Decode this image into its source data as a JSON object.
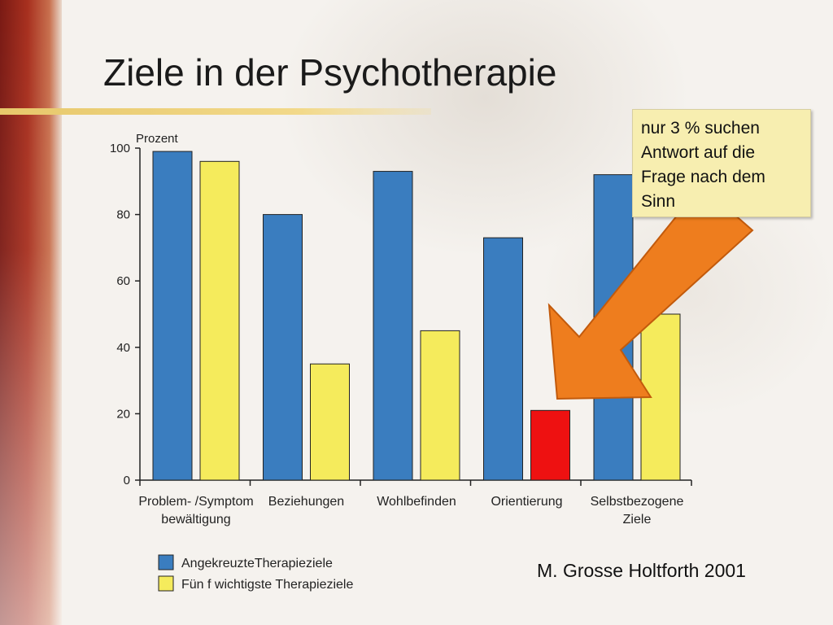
{
  "slide": {
    "title": "Ziele in der Psychotherapie",
    "callout": "nur 3 % suchen Antwort auf die Frage nach dem Sinn",
    "citation": "M. Grosse Holtforth 2001"
  },
  "chart_data": {
    "type": "bar",
    "ylabel": "Prozent",
    "ylim": [
      0,
      100
    ],
    "yticks": [
      0,
      20,
      40,
      60,
      80,
      100
    ],
    "categories": [
      [
        "Problem- /Symptom",
        "bewältigung"
      ],
      [
        "Beziehungen"
      ],
      [
        "Wohlbefinden"
      ],
      [
        "Orientierung"
      ],
      [
        "Selbstbezogene",
        "Ziele"
      ]
    ],
    "series": [
      {
        "name": "AngekreuzteTherapieziele",
        "color": "#3a7dbf",
        "values": [
          99,
          80,
          93,
          73,
          92
        ]
      },
      {
        "name": "Fün f wichtigste Therapieziele",
        "color": "#f5eb5c",
        "values": [
          96,
          35,
          45,
          21,
          50
        ]
      }
    ],
    "highlight": {
      "series": 1,
      "index": 3,
      "color": "#ee1111"
    },
    "legend_position": "bottom-left",
    "grid": false
  },
  "colors": {
    "arrow": "#ee7d1e",
    "arrow_border": "#c25a0c"
  }
}
